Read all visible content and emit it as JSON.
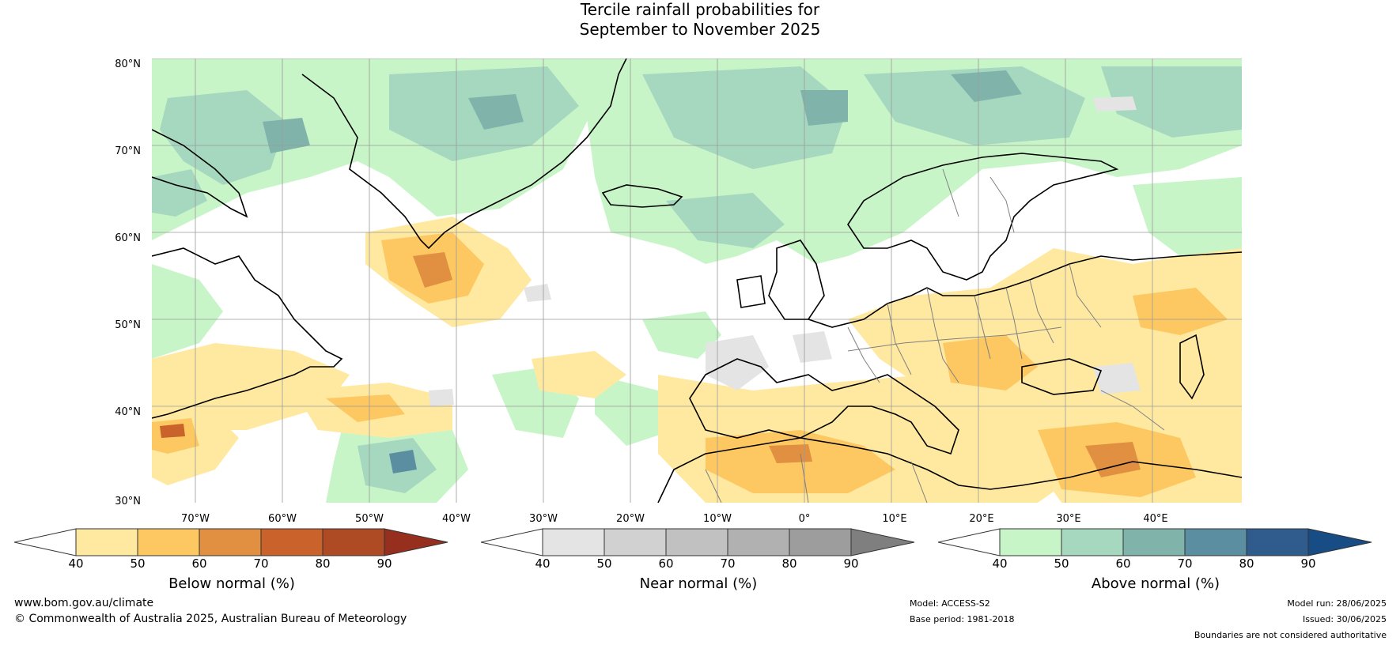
{
  "title": {
    "line1": "Tercile rainfall probabilities for",
    "line2": "September to November 2025"
  },
  "map": {
    "lat_labels": [
      "80°N",
      "70°N",
      "60°N",
      "50°N",
      "40°N",
      "30°N"
    ],
    "lon_labels": [
      "70°W",
      "60°W",
      "50°W",
      "40°W",
      "30°W",
      "20°W",
      "10°W",
      "0°",
      "10°E",
      "20°E",
      "30°E",
      "40°E"
    ],
    "gridlines": true,
    "region": "North Atlantic and Europe"
  },
  "colorbars": [
    {
      "label": "Below normal (%)",
      "ticks": [
        "40",
        "50",
        "60",
        "70",
        "80",
        "90"
      ],
      "colors": [
        "#ffffff",
        "#ffe9a0",
        "#fdc862",
        "#e09040",
        "#c9622b",
        "#ae4a24",
        "#962f1d"
      ]
    },
    {
      "label": "Near normal (%)",
      "ticks": [
        "40",
        "50",
        "60",
        "70",
        "80",
        "90"
      ],
      "colors": [
        "#ffffff",
        "#e4e4e4",
        "#d1d1d1",
        "#c1c1c1",
        "#b1b1b1",
        "#9d9d9d",
        "#7f7f7f"
      ]
    },
    {
      "label": "Above normal (%)",
      "ticks": [
        "40",
        "50",
        "60",
        "70",
        "80",
        "90"
      ],
      "colors": [
        "#ffffff",
        "#c8f5c8",
        "#a5d8bf",
        "#80b4ab",
        "#5b8ea0",
        "#2f5c8d",
        "#174d84"
      ]
    }
  ],
  "footer": {
    "website": "www.bom.gov.au/climate",
    "copyright": "© Commonwealth of Australia 2025, Australian Bureau of Meteorology",
    "model": "Model: ACCESS-S2",
    "base_period": "Base period: 1981-2018",
    "model_run": "Model run: 28/06/2025",
    "issued": "Issued: 30/06/2025",
    "disclaimer": "Boundaries are not considered authoritative"
  }
}
